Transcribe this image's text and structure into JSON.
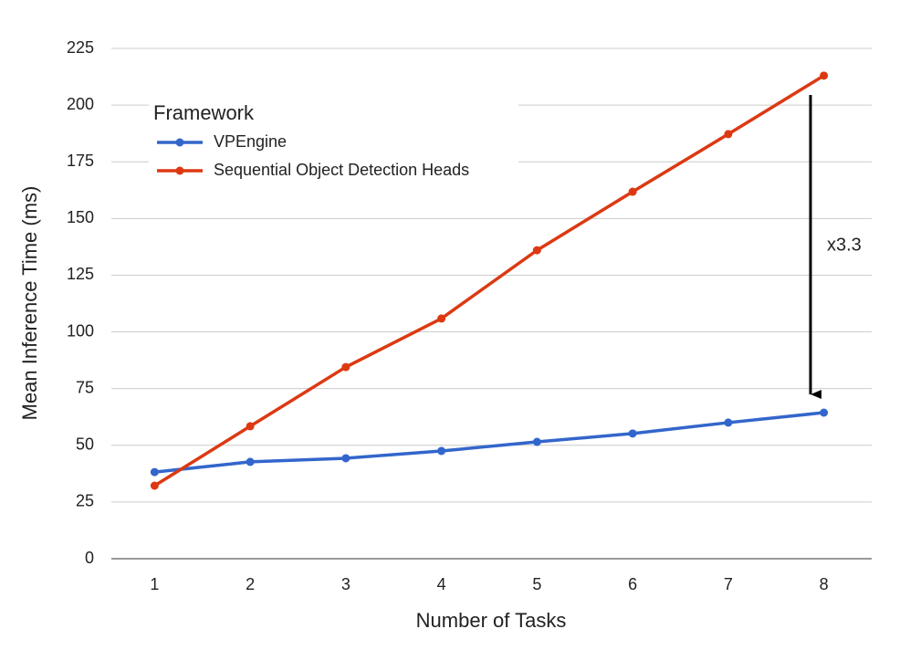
{
  "chart_data": {
    "type": "line",
    "x_label": "Number of Tasks",
    "y_label": "Mean Inference Time (ms)",
    "categories": [
      "1",
      "2",
      "3",
      "4",
      "5",
      "6",
      "7",
      "8"
    ],
    "series": [
      {
        "name": "VPEngine",
        "color": "#3366cc",
        "values": [
          38.2,
          42.7,
          44.3,
          47.5,
          51.5,
          55.2,
          60,
          64.4
        ]
      },
      {
        "name": "Sequential Object Detection Heads",
        "color": "#dc3912",
        "values": [
          32.2,
          58.4,
          84.5,
          105.9,
          136,
          161.8,
          187.2,
          213
        ]
      }
    ],
    "ylim": [
      0,
      225
    ],
    "yticks": [
      0,
      25,
      50,
      75,
      100,
      125,
      150,
      175,
      200,
      225
    ],
    "grid": true,
    "legend_title": "Framework",
    "legend_position": "upper left",
    "annotation": "x3.3"
  }
}
